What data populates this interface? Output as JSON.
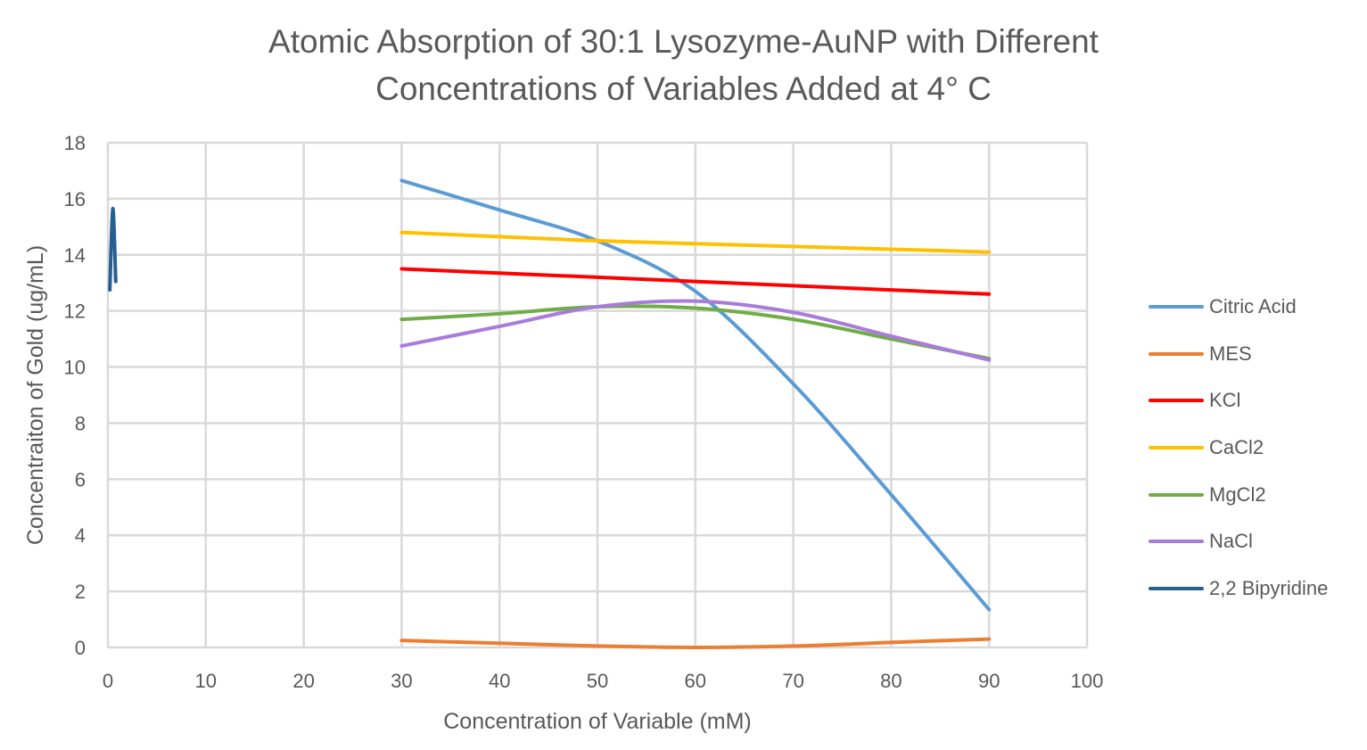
{
  "chart_data": {
    "type": "line",
    "title": [
      "Atomic Absorption of 30:1 Lysozyme-AuNP with Different",
      "Concentrations of Variables Added at 4° C"
    ],
    "xlabel": "Concentration of Variable (mM)",
    "ylabel": "Concentraiton of Gold (ug/mL)",
    "xlim": [
      0,
      100
    ],
    "ylim": [
      0,
      18
    ],
    "xticks": [
      0,
      10,
      20,
      30,
      40,
      50,
      60,
      70,
      80,
      90,
      100
    ],
    "yticks": [
      0,
      2,
      4,
      6,
      8,
      10,
      12,
      14,
      16,
      18
    ],
    "grid": true,
    "smooth": true,
    "legend_position": "right",
    "series": [
      {
        "name": "Citric Acid",
        "color": "#5B9BD5",
        "x": [
          30,
          40,
          50,
          60,
          70,
          80,
          90
        ],
        "y": [
          16.65,
          15.6,
          14.5,
          12.7,
          9.4,
          5.45,
          1.35
        ]
      },
      {
        "name": "MES",
        "color": "#ED7D31",
        "x": [
          30,
          40,
          50,
          60,
          70,
          80,
          90
        ],
        "y": [
          0.25,
          0.15,
          0.05,
          0.0,
          0.05,
          0.18,
          0.3
        ]
      },
      {
        "name": "KCl",
        "color": "#FF0000",
        "x": [
          30,
          40,
          50,
          60,
          70,
          80,
          90
        ],
        "y": [
          13.5,
          13.35,
          13.2,
          13.05,
          12.9,
          12.75,
          12.6
        ]
      },
      {
        "name": "CaCl2",
        "color": "#FFC000",
        "x": [
          30,
          40,
          50,
          60,
          70,
          80,
          90
        ],
        "y": [
          14.8,
          14.65,
          14.5,
          14.4,
          14.3,
          14.2,
          14.1
        ]
      },
      {
        "name": "MgCl2",
        "color": "#70AD47",
        "x": [
          30,
          40,
          50,
          60,
          70,
          80,
          90
        ],
        "y": [
          11.7,
          11.9,
          12.15,
          12.1,
          11.7,
          11.0,
          10.3
        ]
      },
      {
        "name": "NaCl",
        "color": "#A97BDB",
        "x": [
          30,
          40,
          50,
          60,
          70,
          80,
          90
        ],
        "y": [
          10.75,
          11.45,
          12.15,
          12.35,
          11.95,
          11.1,
          10.25
        ]
      },
      {
        "name": "2,2 Bipyridine",
        "color": "#255E91",
        "x": [
          0.2,
          0.5,
          0.8
        ],
        "y": [
          12.75,
          15.65,
          13.05
        ]
      }
    ]
  }
}
